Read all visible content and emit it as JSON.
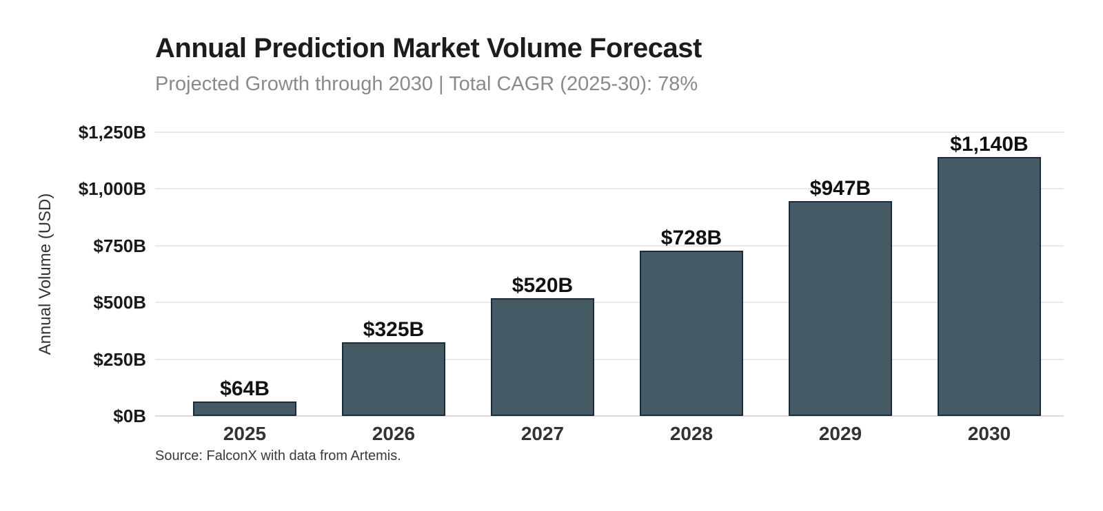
{
  "header": {
    "title": "Annual Prediction Market Volume Forecast",
    "subtitle": "Projected Growth through 2030 | Total CAGR (2025-30): 78%"
  },
  "footer": {
    "source": "Source: FalconX with data from Artemis."
  },
  "chart_data": {
    "type": "bar",
    "title": "Annual Prediction Market Volume Forecast",
    "subtitle": "Projected Growth through 2030 | Total CAGR (2025-30): 78%",
    "categories": [
      "2025",
      "2026",
      "2027",
      "2028",
      "2029",
      "2030"
    ],
    "values": [
      64,
      325,
      520,
      728,
      947,
      1140
    ],
    "value_labels": [
      "$64B",
      "$325B",
      "$520B",
      "$728B",
      "$947B",
      "$1,140B"
    ],
    "xlabel": "",
    "ylabel": "Annual Volume (USD)",
    "ylim": [
      0,
      1250
    ],
    "ytick_interval": 250,
    "ytick_labels": [
      "$0B",
      "$250B",
      "$500B",
      "$750B",
      "$1,000B",
      "$1,250B"
    ],
    "grid": true,
    "legend": false,
    "source": "Source: FalconX with data from Artemis.",
    "cagr_note": "Total CAGR (2025-30): 78%",
    "colors": {
      "background": "#ffffff",
      "bar_fill": "#455a64",
      "bar_border": "#1c2b3a",
      "grid": "#e9e9e9",
      "axis_line": "#d9d9d9",
      "title": "#1c1c1c",
      "subtitle": "#8a8a8a",
      "ytick": "#1a1a1a",
      "xtick": "#333333",
      "value_label": "#111111",
      "y_axis_title": "#333333",
      "source": "#3a3a3a"
    }
  }
}
